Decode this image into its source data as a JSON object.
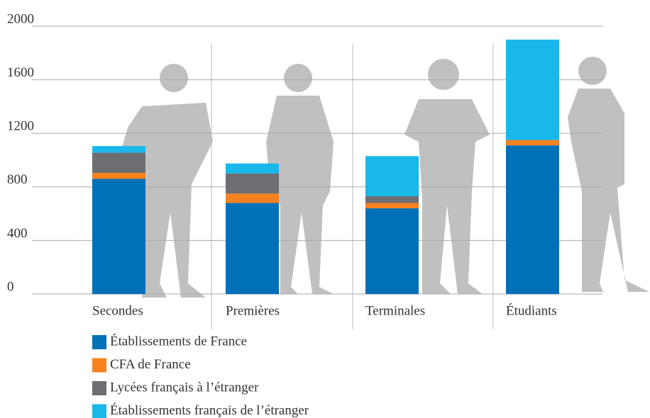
{
  "chart_data": {
    "type": "stacked_bar",
    "categories": [
      "Secondes",
      "Premières",
      "Terminales",
      "Étudiants"
    ],
    "series": [
      {
        "name": "Établissements de France",
        "color": "#0070b8",
        "values": [
          860,
          680,
          640,
          1110
        ]
      },
      {
        "name": "CFA de France",
        "color": "#f5821f",
        "values": [
          45,
          70,
          40,
          40
        ]
      },
      {
        "name": "Lycées français à l’étranger",
        "color": "#6d6e71",
        "values": [
          150,
          150,
          50,
          0
        ]
      },
      {
        "name": "Établissements français de l’étranger",
        "color": "#1ab7ea",
        "values": [
          50,
          75,
          300,
          750
        ]
      }
    ],
    "ylim": [
      0,
      2000
    ],
    "yticks": [
      0,
      400,
      800,
      1200,
      1600,
      2000
    ],
    "grid": true
  }
}
